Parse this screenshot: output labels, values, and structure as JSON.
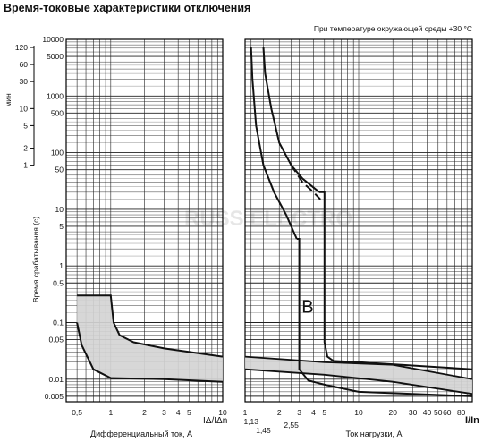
{
  "title": "Время-токовые характеристики отключения",
  "ambient_note": "При температуре окружающей среды +30 °C",
  "ylabel_min": "мин",
  "ylabel_sec": "Время срабатывания (с)",
  "min_ticks": [
    "120",
    "60",
    "30",
    "10",
    "5",
    "2",
    "1"
  ],
  "sec_ticks": [
    "10000",
    "5000",
    "1000",
    "500",
    "100",
    "50",
    "10",
    "5",
    "1",
    "0.5",
    "0.1",
    "0.05",
    "0.01",
    "0.005"
  ],
  "watermark": "RUSS ELECTRO",
  "chart_data": [
    {
      "type": "line",
      "name": "rcd",
      "xlabel": "Дифференциальный ток, А",
      "axis_symbol": "IΔ/IΔn",
      "x_scale": "log",
      "y_scale": "log",
      "xlim": [
        0.4,
        10
      ],
      "ylim": [
        0.004,
        10000
      ],
      "x_ticks": [
        "0,5",
        "1",
        "2",
        "3",
        "4",
        "5",
        "10"
      ],
      "band": {
        "upper": [
          [
            0.5,
            0.3
          ],
          [
            1,
            0.3
          ],
          [
            1.06,
            0.1
          ],
          [
            1.2,
            0.06
          ],
          [
            1.6,
            0.045
          ],
          [
            3,
            0.035
          ],
          [
            10,
            0.025
          ]
        ],
        "lower": [
          [
            0.5,
            0.1
          ],
          [
            0.55,
            0.04
          ],
          [
            0.7,
            0.015
          ],
          [
            1,
            0.0105
          ],
          [
            3,
            0.01
          ],
          [
            10,
            0.009
          ]
        ]
      }
    },
    {
      "type": "line",
      "name": "breaker-b",
      "xlabel": "Ток нагрузки, А",
      "axis_symbol": "I/In",
      "curve_label": "B",
      "x_scale": "log",
      "y_scale": "log",
      "xlim": [
        1,
        100
      ],
      "ylim": [
        0.004,
        10000
      ],
      "x_ticks": [
        "1",
        "2",
        "3",
        "4",
        "5",
        "10",
        "20",
        "30",
        "40",
        "50",
        "60",
        "80"
      ],
      "x_ticks_extra": [
        "1,13",
        "1,45",
        "2,55"
      ],
      "thermal_cold": [
        [
          1.13,
          7200
        ],
        [
          1.16,
          2000
        ],
        [
          1.25,
          300
        ],
        [
          1.45,
          60
        ],
        [
          1.8,
          20
        ],
        [
          2.3,
          8
        ],
        [
          2.85,
          3
        ]
      ],
      "thermal_hot": [
        [
          1.45,
          7200
        ],
        [
          1.5,
          2500
        ],
        [
          1.7,
          600
        ],
        [
          2,
          150
        ],
        [
          2.55,
          60
        ],
        [
          3.2,
          35
        ],
        [
          4.5,
          20
        ]
      ],
      "thermal_hot_dashed": [
        [
          2.55,
          60
        ],
        [
          3.2,
          30
        ],
        [
          4,
          20
        ],
        [
          4.6,
          15
        ]
      ],
      "magnetic_low": [
        [
          2.85,
          3
        ],
        [
          3,
          3
        ],
        [
          3,
          0.015
        ],
        [
          3.6,
          0.0095
        ],
        [
          5,
          0.008
        ],
        [
          10,
          0.006
        ],
        [
          100,
          0.005
        ]
      ],
      "magnetic_high": [
        [
          4.5,
          20
        ],
        [
          5,
          20
        ],
        [
          5,
          0.045
        ],
        [
          5.3,
          0.025
        ],
        [
          6,
          0.021
        ],
        [
          10,
          0.02
        ],
        [
          100,
          0.015
        ]
      ],
      "band": {
        "upper": [
          [
            1,
            0.025
          ],
          [
            5,
            0.02
          ],
          [
            20,
            0.018
          ],
          [
            100,
            0.01
          ]
        ],
        "lower": [
          [
            1,
            0.015
          ],
          [
            5,
            0.012
          ],
          [
            20,
            0.009
          ],
          [
            100,
            0.0055
          ]
        ]
      }
    }
  ]
}
